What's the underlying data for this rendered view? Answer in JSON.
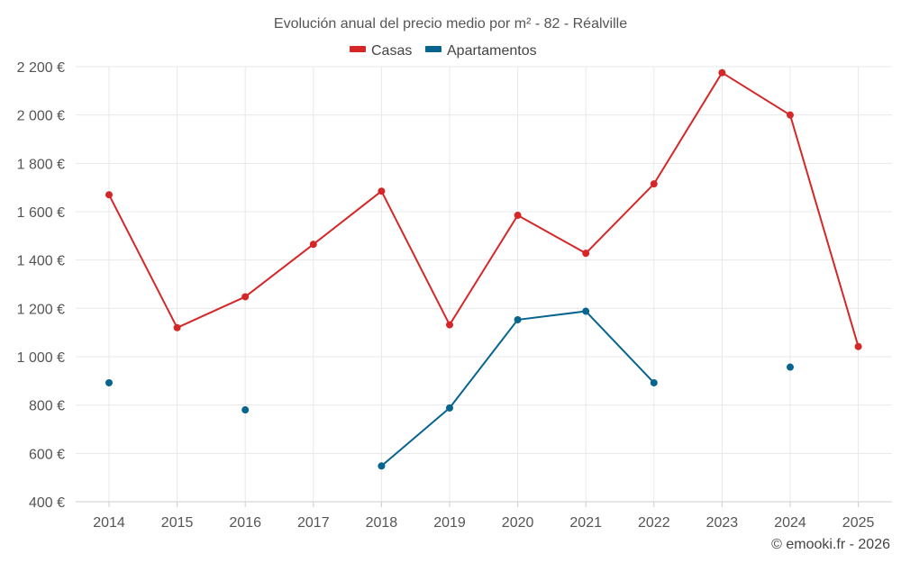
{
  "chart_data": {
    "type": "line",
    "title": "Evolución anual del precio medio por m² - 82 - Réalville",
    "xlabel": "",
    "ylabel": "",
    "categories": [
      "2014",
      "2015",
      "2016",
      "2017",
      "2018",
      "2019",
      "2020",
      "2021",
      "2022",
      "2023",
      "2024",
      "2025"
    ],
    "ylim": [
      400,
      2200
    ],
    "yticks": [
      400,
      600,
      800,
      1000,
      1200,
      1400,
      1600,
      1800,
      2000,
      2200
    ],
    "ytick_labels": [
      "400 €",
      "600 €",
      "800 €",
      "1 000 €",
      "1 200 €",
      "1 400 €",
      "1 600 €",
      "1 800 €",
      "2 000 €",
      "2 200 €"
    ],
    "grid": true,
    "legend_position": "top-center",
    "series": [
      {
        "name": "Casas",
        "color": "#d62728",
        "values": [
          1670,
          1120,
          1248,
          1465,
          1685,
          1132,
          1585,
          1428,
          1715,
          2175,
          2000,
          1042
        ]
      },
      {
        "name": "Apartamentos",
        "color": "#06648f",
        "values": [
          892,
          null,
          780,
          null,
          548,
          788,
          1153,
          1188,
          892,
          null,
          957,
          null
        ]
      }
    ]
  },
  "credit": "© emooki.fr - 2026"
}
